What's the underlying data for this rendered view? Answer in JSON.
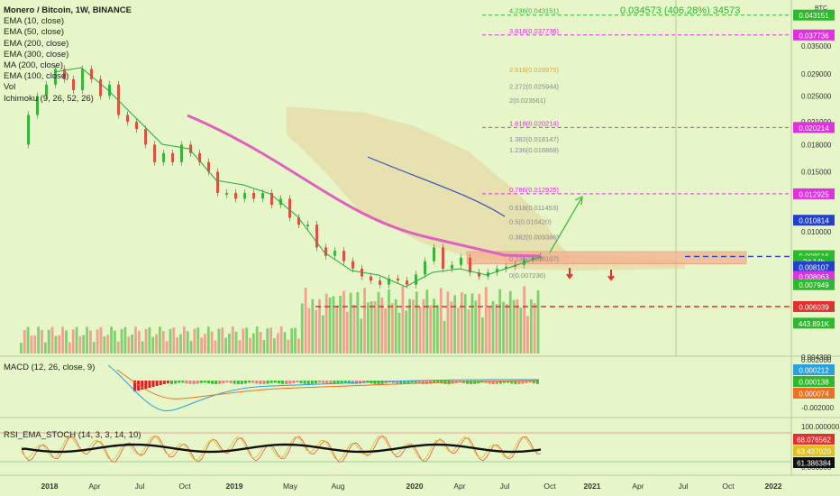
{
  "chart_data": {
    "type": "candlestick",
    "symbol_line": "Monero / Bitcoin, 1W, BINANCE",
    "indicators": [
      "EMA (10, close)",
      "EMA (50, close)",
      "EMA (200, close)",
      "EMA (300, close)",
      "MA (200, close)",
      "EMA (100, close)",
      "Vol",
      "Ichimoku (9, 26, 52, 26)"
    ],
    "currency": "BTC",
    "measure_label": "0.034573 (406.28%) 34573",
    "y_ticks": [
      "0.035000",
      "0.029000",
      "0.025000",
      "0.021000",
      "0.018000",
      "0.015000",
      "0.010000",
      "0.004300"
    ],
    "x_ticks": [
      "2018",
      "Apr",
      "Jul",
      "Oct",
      "2019",
      "May",
      "Aug",
      "2020",
      "Apr",
      "Jul",
      "Oct",
      "2021",
      "Apr",
      "Jul",
      "Oct",
      "2022"
    ],
    "fib_levels": [
      {
        "label": "4.236(0.043151)",
        "price": 0.043151,
        "highlight": true,
        "color": "#2db82d"
      },
      {
        "label": "3.618(0.037736)",
        "price": 0.037736,
        "highlight": true,
        "color": "#e030e0"
      },
      {
        "label": "2.618(0.028975)",
        "price": 0.028975,
        "highlight": false,
        "color": "#f0a030"
      },
      {
        "label": "2.272(0.025944)",
        "price": 0.025944,
        "highlight": false,
        "color": "#888888"
      },
      {
        "label": "2(0.023561)",
        "price": 0.023561,
        "highlight": false,
        "color": "#888888"
      },
      {
        "label": "1.618(0.020214)",
        "price": 0.020214,
        "highlight": true,
        "color": "#e030e0"
      },
      {
        "label": "1.382(0.018147)",
        "price": 0.018147,
        "highlight": false,
        "color": "#888888"
      },
      {
        "label": "1.236(0.016868)",
        "price": 0.016868,
        "highlight": false,
        "color": "#888888"
      },
      {
        "label": "0.786(0.012925)",
        "price": 0.012925,
        "highlight": true,
        "color": "#e030e0"
      },
      {
        "label": "0.618(0.011453)",
        "price": 0.011453,
        "highlight": false,
        "color": "#888888"
      },
      {
        "label": "0.5(0.010420)",
        "price": 0.01042,
        "highlight": false,
        "color": "#888888"
      },
      {
        "label": "0.382(0.009386)",
        "price": 0.009386,
        "highlight": false,
        "color": "#888888"
      },
      {
        "label": "0.236(0.008107)",
        "price": 0.008107,
        "highlight": false,
        "color": "#888888"
      },
      {
        "label": "0(0.007236)",
        "price": 0.007236,
        "highlight": false,
        "color": "#888888"
      }
    ],
    "price_labels": [
      {
        "text": "0.043151",
        "price": 0.043151,
        "bg": "#2db82d"
      },
      {
        "text": "0.037736",
        "price": 0.037736,
        "bg": "#e030e0"
      },
      {
        "text": "0.020214",
        "price": 0.020214,
        "bg": "#e030e0"
      },
      {
        "text": "0.012925",
        "price": 0.012925,
        "bg": "#e030e0"
      },
      {
        "text": "0.010814",
        "price": 0.010814,
        "bg": "#2040d0"
      },
      {
        "text": "0.008516",
        "price": 0.008516,
        "bg": "#2db82d"
      },
      {
        "text": "2d 14h",
        "price": 0.0082,
        "bg": "#2db82d"
      },
      {
        "text": "0.008107",
        "price": 0.0079,
        "bg": "#2040d0"
      },
      {
        "text": "0.008063",
        "price": 0.0074,
        "bg": "#e030e0"
      },
      {
        "text": "0.007949",
        "price": 0.007,
        "bg": "#2db82d"
      },
      {
        "text": "0.006039",
        "price": 0.006039,
        "bg": "#e03030"
      },
      {
        "text": "443.891K",
        "price": 0.0054,
        "bg": "#2db82d"
      }
    ],
    "support_level": 0.006039,
    "resistance_level": 0.008516,
    "zone": [
      0.00805,
      0.00875
    ],
    "macd": {
      "label": "MACD (12, 26, close, 9)",
      "ticks": [
        "0.002000",
        "-0.002000"
      ],
      "values": [
        {
          "text": "0.000212",
          "bg": "#2aa0e0"
        },
        {
          "text": "0.000138",
          "bg": "#2db82d"
        },
        {
          "text": "0.000074",
          "bg": "#f07020"
        }
      ]
    },
    "rsi": {
      "label": "RSI_EMA_STOCH (14, 3, 3, 14, 10)",
      "ticks": [
        "100.000000",
        "0.000000"
      ],
      "values": [
        {
          "text": "68.076562",
          "bg": "#e03030"
        },
        {
          "text": "63.437020",
          "bg": "#e0c020"
        },
        {
          "text": "61.386384",
          "bg": "#111111"
        }
      ]
    }
  }
}
